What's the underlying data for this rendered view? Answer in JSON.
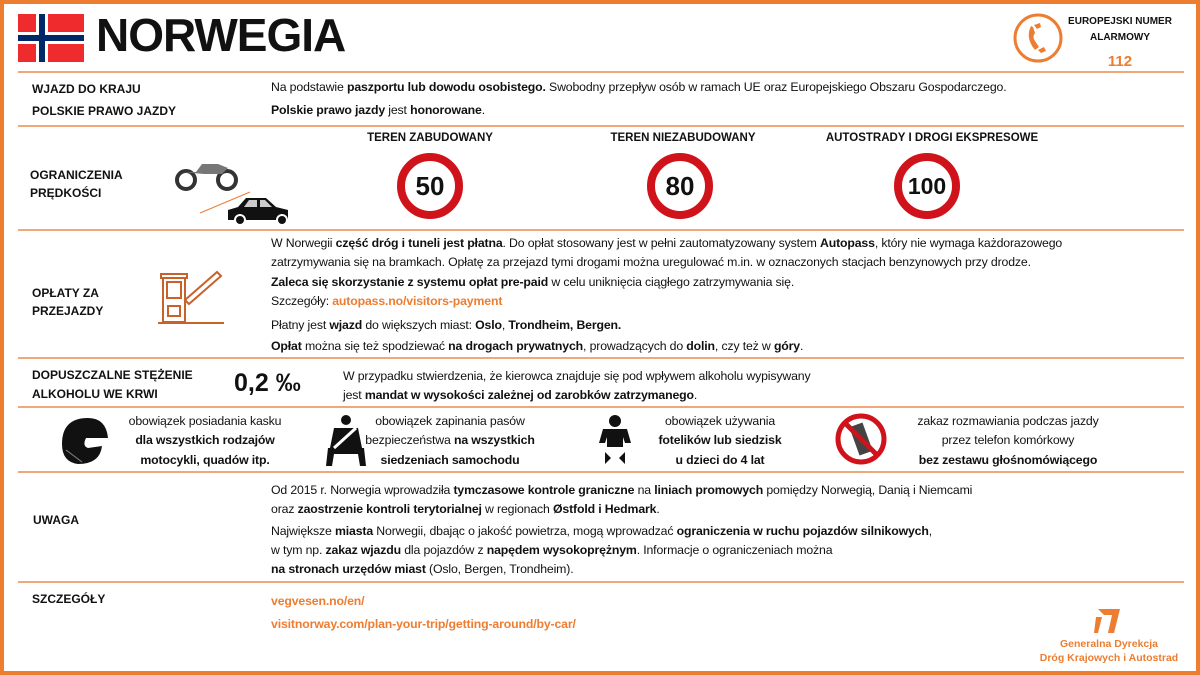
{
  "colors": {
    "accent": "#ED7D31",
    "sign_red": "#D0121B",
    "flag_red": "#EF2B2D",
    "flag_blue": "#002868"
  },
  "header": {
    "title": "NORWEGIA",
    "flag_icon": "norway-flag",
    "emergency": {
      "label_line1": "EUROPEJSKI  NUMER",
      "label_line2": "ALARMOWY",
      "number": "112",
      "icon": "phone-icon"
    }
  },
  "entry": {
    "label1": "WJAZD DO KRAJU",
    "label2": "POLSKIE PRAWO JAZDY",
    "line1": [
      {
        "t": "Na podstawie "
      },
      {
        "t": "paszportu lub dowodu osobistego.",
        "b": 1
      },
      {
        "t": " Swobodny przepływ  osób w ramach UE oraz  Europejskiego Obszaru Gospodarczego."
      }
    ],
    "line2": [
      {
        "t": "Polskie prawo jazdy",
        "b": 1
      },
      {
        "t": " jest "
      },
      {
        "t": "honorowane",
        "b": 1
      },
      {
        "t": "."
      }
    ]
  },
  "speed": {
    "label1": "OGRANICZENIA",
    "label2": "PRĘDKOŚCI",
    "vehicle_icons": [
      "motorcycle-icon",
      "car-icon"
    ],
    "limits": [
      {
        "title": "TEREN ZABUDOWANY",
        "value": "50"
      },
      {
        "title": "TEREN NIEZABUDOWANY",
        "value": "80"
      },
      {
        "title": "AUTOSTRADY I DROGI EKSPRESOWE",
        "value": "100"
      }
    ]
  },
  "tolls": {
    "label1": "OPŁATY ZA",
    "label2": "PRZEJAZDY",
    "icon": "toll-gate-icon",
    "lines": [
      [
        {
          "t": "W Norwegii "
        },
        {
          "t": "część dróg i tuneli jest płatna",
          "b": 1
        },
        {
          "t": ". Do opłat  stosowany jest w pełni zautomatyzowany  system "
        },
        {
          "t": "Autopass",
          "b": 1
        },
        {
          "t": ", który nie wymaga każdorazowego"
        }
      ],
      [
        {
          "t": "zatrzymywania się na bramkach. Opłatę za przejazd tymi drogami można  uregulować m.in.  w oznaczonych stacjach benzynowych przy drodze."
        }
      ],
      [
        {
          "t": "Zaleca się skorzystanie z systemu opłat pre-paid",
          "b": 1
        },
        {
          "t": " w celu uniknięcia ciągłego zatrzymywania się."
        }
      ],
      [
        {
          "t": "Szczegóły: "
        },
        {
          "t": "autopass.no/visitors-payment",
          "l": 1
        }
      ],
      [
        {
          "t": "Płatny jest "
        },
        {
          "t": "wjazd",
          "b": 1
        },
        {
          "t": " do większych miast: "
        },
        {
          "t": "Oslo",
          "b": 1
        },
        {
          "t": ", "
        },
        {
          "t": "Trondheim, Bergen.",
          "b": 1
        }
      ],
      [
        {
          "t": "Opłat",
          "b": 1
        },
        {
          "t": " można  się też spodziewać "
        },
        {
          "t": "na drogach prywatnych",
          "b": 1
        },
        {
          "t": ", prowadzących do "
        },
        {
          "t": "dolin",
          "b": 1
        },
        {
          "t": ", czy też w "
        },
        {
          "t": "góry",
          "b": 1
        },
        {
          "t": "."
        }
      ]
    ]
  },
  "alcohol": {
    "label1": "DOPUSZCZALNE STĘŻENIE",
    "label2": "ALKOHOLU WE KRWI",
    "value": "0,2 ‰",
    "lines": [
      [
        {
          "t": "W przypadku stwierdzenia, że kierowca znajduje się pod wpływem alkoholu wypisywany"
        }
      ],
      [
        {
          "t": "jest "
        },
        {
          "t": "mandat w wysokości zależnej od zarobków zatrzymanego",
          "b": 1
        },
        {
          "t": "."
        }
      ]
    ]
  },
  "rules": [
    {
      "icon": "helmet-icon",
      "lines": [
        [
          {
            "t": "obowiązek posiadania kasku"
          }
        ],
        [
          {
            "t": "dla wszystkich rodzajów",
            "b": 1
          }
        ],
        [
          {
            "t": "motocykli, quadów itp.",
            "b": 1
          }
        ]
      ]
    },
    {
      "icon": "seatbelt-icon",
      "lines": [
        [
          {
            "t": "obowiązek zapinania pasów"
          }
        ],
        [
          {
            "t": "bezpieczeństwa "
          },
          {
            "t": "na wszystkich",
            "b": 1
          }
        ],
        [
          {
            "t": "siedzeniach samochodu",
            "b": 1
          }
        ]
      ]
    },
    {
      "icon": "child-seat-icon",
      "lines": [
        [
          {
            "t": "obowiązek używania"
          }
        ],
        [
          {
            "t": "fotelików lub siedzisk",
            "b": 1
          }
        ],
        [
          {
            "t": "u dzieci do 4 lat",
            "b": 1
          }
        ]
      ]
    },
    {
      "icon": "no-phone-icon",
      "lines": [
        [
          {
            "t": "zakaz rozmawiania podczas jazdy"
          }
        ],
        [
          {
            "t": "przez telefon komórkowy"
          }
        ],
        [
          {
            "t": "bez zestawu głośnomówiącego",
            "b": 1
          }
        ]
      ]
    }
  ],
  "notice": {
    "label": "UWAGA",
    "lines": [
      [
        {
          "t": "Od 2015 r. Norwegia wprowadziła "
        },
        {
          "t": "tymczasowe kontrole graniczne",
          "b": 1
        },
        {
          "t": " na "
        },
        {
          "t": "liniach promowych",
          "b": 1
        },
        {
          "t": " pomiędzy Norwegią, Danią i Niemcami"
        }
      ],
      [
        {
          "t": "oraz "
        },
        {
          "t": "zaostrzenie kontroli terytorialnej",
          "b": 1
        },
        {
          "t": " w regionach "
        },
        {
          "t": "Østfold i Hedmark",
          "b": 1
        },
        {
          "t": "."
        }
      ],
      [
        {
          "t": "Największe "
        },
        {
          "t": "miasta",
          "b": 1
        },
        {
          "t": " Norwegii, dbając o jakość powietrza, mogą wprowadzać "
        },
        {
          "t": "ograniczenia w ruchu pojazdów silnikowych",
          "b": 1
        },
        {
          "t": ","
        }
      ],
      [
        {
          "t": "w tym np. "
        },
        {
          "t": "zakaz wjazdu",
          "b": 1
        },
        {
          "t": " dla pojazdów z "
        },
        {
          "t": "napędem wysokoprężnym",
          "b": 1
        },
        {
          "t": ". Informacje o ograniczeniach można"
        }
      ],
      [
        {
          "t": "na stronach urzędów miast",
          "b": 1
        },
        {
          "t": " (Oslo, Bergen, Trondheim)."
        }
      ]
    ]
  },
  "details": {
    "label": "SZCZEGÓŁY",
    "links": [
      "vegvesen.no/en/",
      "visitnorway.com/plan-your-trip/getting-around/by-car/"
    ]
  },
  "footer_logo": {
    "line1": "Generalna Dyrekcja",
    "line2": "Dróg Krajowych i Autostrad"
  }
}
